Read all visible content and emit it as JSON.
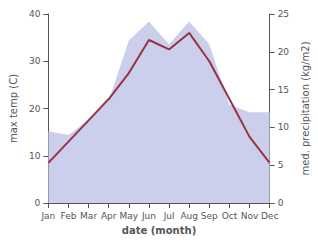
{
  "chart_data": {
    "type": "line",
    "xlabel": "date (month)",
    "ylabel": "max temp (C)",
    "y2label": "med. precipitation (kg/m2)",
    "categories": [
      "Jan",
      "Feb",
      "Mar",
      "Apr",
      "May",
      "Jun",
      "Jul",
      "Aug",
      "Sep",
      "Oct",
      "Nov",
      "Dec"
    ],
    "series": [
      {
        "type": "area",
        "axis": "y2",
        "color": "#c5cae9",
        "values": [
          9.5,
          9.0,
          11.0,
          13.5,
          21.5,
          24.0,
          21.0,
          24.0,
          21.0,
          13.0,
          12.0,
          12.0
        ]
      },
      {
        "type": "line",
        "color": "#993344",
        "values": [
          8.5,
          13.0,
          17.5,
          22.0,
          27.5,
          34.5,
          32.5,
          36.0,
          30.0,
          22.0,
          14.0,
          8.5
        ]
      }
    ],
    "ylim": [
      0,
      40
    ],
    "yticks": [
      0,
      10,
      20,
      30,
      40
    ],
    "y2lim": [
      0,
      25
    ],
    "y2ticks": [
      0,
      5,
      10,
      15,
      20,
      25
    ],
    "grid": false
  }
}
